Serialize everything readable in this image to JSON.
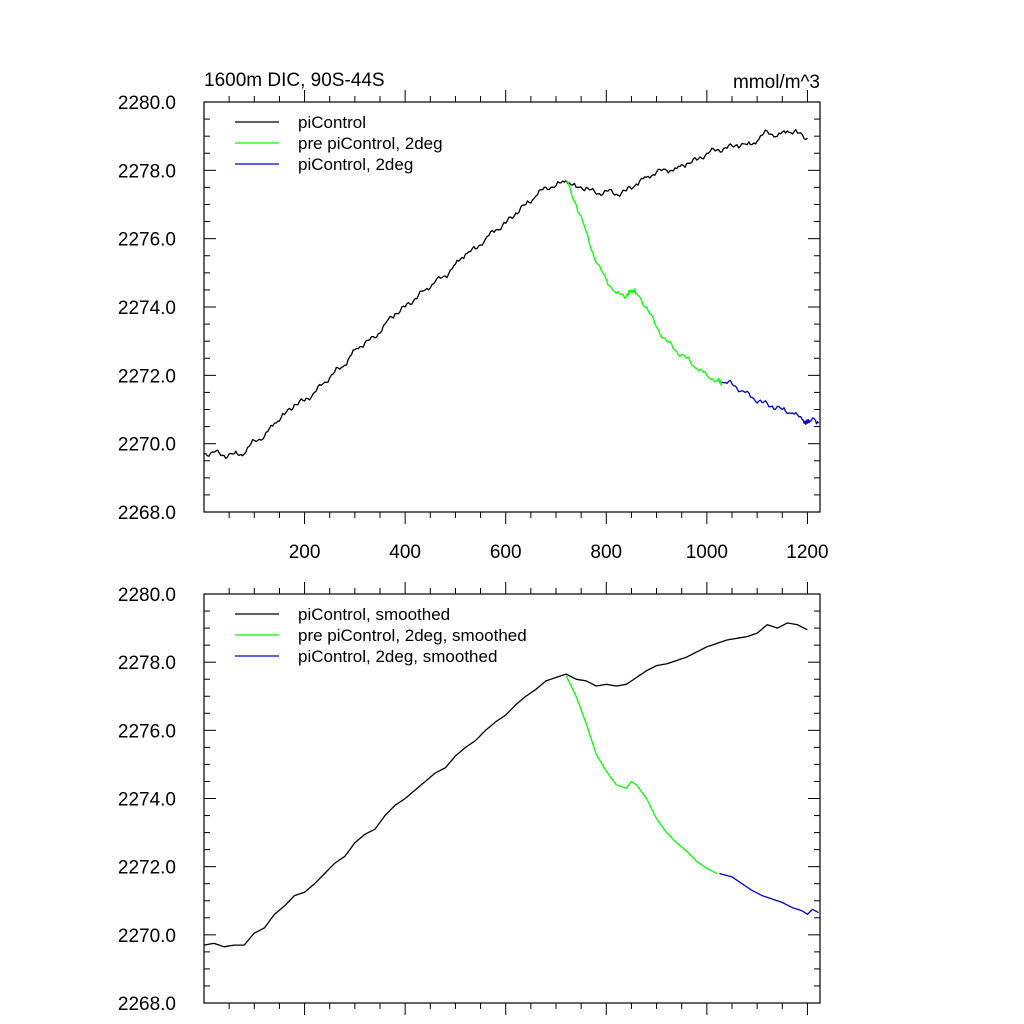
{
  "chart_data": [
    {
      "type": "line",
      "title": "1600m DIC, 90S-44S",
      "units": "mmol/m^3",
      "xlabel": "",
      "ylabel": "",
      "xlim": [
        0,
        1225
      ],
      "ylim": [
        2268.0,
        2280.0
      ],
      "x_ticks": [
        200,
        400,
        600,
        800,
        1000,
        1200
      ],
      "y_ticks": [
        "2268.0",
        "2270.0",
        "2272.0",
        "2274.0",
        "2276.0",
        "2278.0",
        "2280.0"
      ],
      "legend_position": "top-left",
      "series": [
        {
          "name": "piControl",
          "color": "#000000",
          "x": [
            0,
            20,
            40,
            60,
            80,
            100,
            120,
            140,
            160,
            180,
            200,
            220,
            240,
            260,
            280,
            300,
            320,
            340,
            360,
            380,
            400,
            420,
            440,
            460,
            480,
            500,
            520,
            540,
            560,
            580,
            600,
            620,
            640,
            660,
            680,
            700,
            720,
            740,
            760,
            780,
            800,
            820,
            840,
            860,
            880,
            900,
            920,
            940,
            960,
            980,
            1000,
            1020,
            1040,
            1060,
            1080,
            1100,
            1120,
            1140,
            1160,
            1180,
            1200
          ],
          "y": [
            2269.7,
            2269.75,
            2269.65,
            2269.7,
            2269.7,
            2270.1,
            2270.2,
            2270.6,
            2270.85,
            2271.15,
            2271.25,
            2271.5,
            2271.8,
            2272.1,
            2272.3,
            2272.75,
            2272.95,
            2273.1,
            2273.5,
            2273.8,
            2274.0,
            2274.25,
            2274.5,
            2274.75,
            2274.9,
            2275.25,
            2275.55,
            2275.7,
            2276.0,
            2276.25,
            2276.45,
            2276.75,
            2277.0,
            2277.25,
            2277.5,
            2277.55,
            2277.7,
            2277.5,
            2277.5,
            2277.3,
            2277.4,
            2277.3,
            2277.4,
            2277.6,
            2277.8,
            2277.95,
            2278.0,
            2278.05,
            2278.2,
            2278.3,
            2278.5,
            2278.6,
            2278.65,
            2278.75,
            2278.75,
            2278.85,
            2279.15,
            2279.0,
            2279.15,
            2279.1,
            2278.95
          ]
        },
        {
          "name": "pre piControl, 2deg",
          "color": "#00ff00",
          "x": [
            720,
            740,
            760,
            780,
            800,
            820,
            840,
            850,
            860,
            880,
            900,
            920,
            940,
            960,
            980,
            1000,
            1020,
            1030
          ],
          "y": [
            2277.7,
            2277.0,
            2276.2,
            2275.3,
            2274.8,
            2274.4,
            2274.3,
            2274.5,
            2274.4,
            2274.0,
            2273.4,
            2273.0,
            2272.7,
            2272.5,
            2272.2,
            2272.0,
            2271.85,
            2271.8
          ]
        },
        {
          "name": "piControl, 2deg",
          "color": "#0000cc",
          "x": [
            1030,
            1050,
            1070,
            1090,
            1110,
            1130,
            1150,
            1170,
            1190,
            1200,
            1210,
            1222
          ],
          "y": [
            2271.8,
            2271.75,
            2271.55,
            2271.35,
            2271.2,
            2271.1,
            2271.0,
            2270.9,
            2270.7,
            2270.6,
            2270.75,
            2270.6
          ]
        }
      ]
    },
    {
      "type": "line",
      "title": "",
      "units": "",
      "xlabel": "",
      "ylabel": "",
      "xlim": [
        0,
        1225
      ],
      "ylim": [
        2268.0,
        2280.0
      ],
      "x_ticks": [
        200,
        400,
        600,
        800,
        1000,
        1200
      ],
      "y_ticks": [
        "2268.0",
        "2270.0",
        "2272.0",
        "2274.0",
        "2276.0",
        "2278.0",
        "2280.0"
      ],
      "legend_position": "top-left",
      "series": [
        {
          "name": "piControl, smoothed",
          "color": "#000000",
          "x": [
            0,
            20,
            40,
            60,
            80,
            100,
            120,
            140,
            160,
            180,
            200,
            220,
            240,
            260,
            280,
            300,
            320,
            340,
            360,
            380,
            400,
            420,
            440,
            460,
            480,
            500,
            520,
            540,
            560,
            580,
            600,
            620,
            640,
            660,
            680,
            700,
            720,
            740,
            760,
            780,
            800,
            820,
            840,
            860,
            880,
            900,
            920,
            940,
            960,
            980,
            1000,
            1020,
            1040,
            1060,
            1080,
            1100,
            1120,
            1140,
            1160,
            1180,
            1200
          ],
          "y": [
            2269.7,
            2269.75,
            2269.65,
            2269.7,
            2269.7,
            2270.05,
            2270.2,
            2270.6,
            2270.85,
            2271.15,
            2271.25,
            2271.5,
            2271.8,
            2272.1,
            2272.3,
            2272.7,
            2272.95,
            2273.1,
            2273.5,
            2273.8,
            2274.0,
            2274.25,
            2274.5,
            2274.75,
            2274.9,
            2275.25,
            2275.5,
            2275.7,
            2276.0,
            2276.25,
            2276.45,
            2276.75,
            2277.0,
            2277.2,
            2277.45,
            2277.55,
            2277.65,
            2277.5,
            2277.45,
            2277.3,
            2277.35,
            2277.3,
            2277.35,
            2277.55,
            2277.75,
            2277.9,
            2277.95,
            2278.05,
            2278.15,
            2278.3,
            2278.45,
            2278.55,
            2278.65,
            2278.7,
            2278.75,
            2278.85,
            2279.1,
            2279.0,
            2279.15,
            2279.1,
            2278.95
          ]
        },
        {
          "name": "pre piControl, 2deg, smoothed",
          "color": "#00ff00",
          "x": [
            720,
            740,
            760,
            780,
            800,
            820,
            840,
            850,
            860,
            880,
            900,
            920,
            940,
            960,
            980,
            1000,
            1020
          ],
          "y": [
            2277.6,
            2277.0,
            2276.2,
            2275.3,
            2274.8,
            2274.4,
            2274.3,
            2274.5,
            2274.4,
            2274.0,
            2273.4,
            2273.0,
            2272.7,
            2272.45,
            2272.15,
            2271.95,
            2271.8
          ]
        },
        {
          "name": "piControl, 2deg, smoothed",
          "color": "#0000cc",
          "x": [
            1025,
            1050,
            1070,
            1090,
            1110,
            1130,
            1150,
            1170,
            1190,
            1200,
            1210,
            1222
          ],
          "y": [
            2271.8,
            2271.7,
            2271.5,
            2271.3,
            2271.15,
            2271.05,
            2270.95,
            2270.8,
            2270.7,
            2270.6,
            2270.75,
            2270.65
          ]
        }
      ]
    }
  ]
}
